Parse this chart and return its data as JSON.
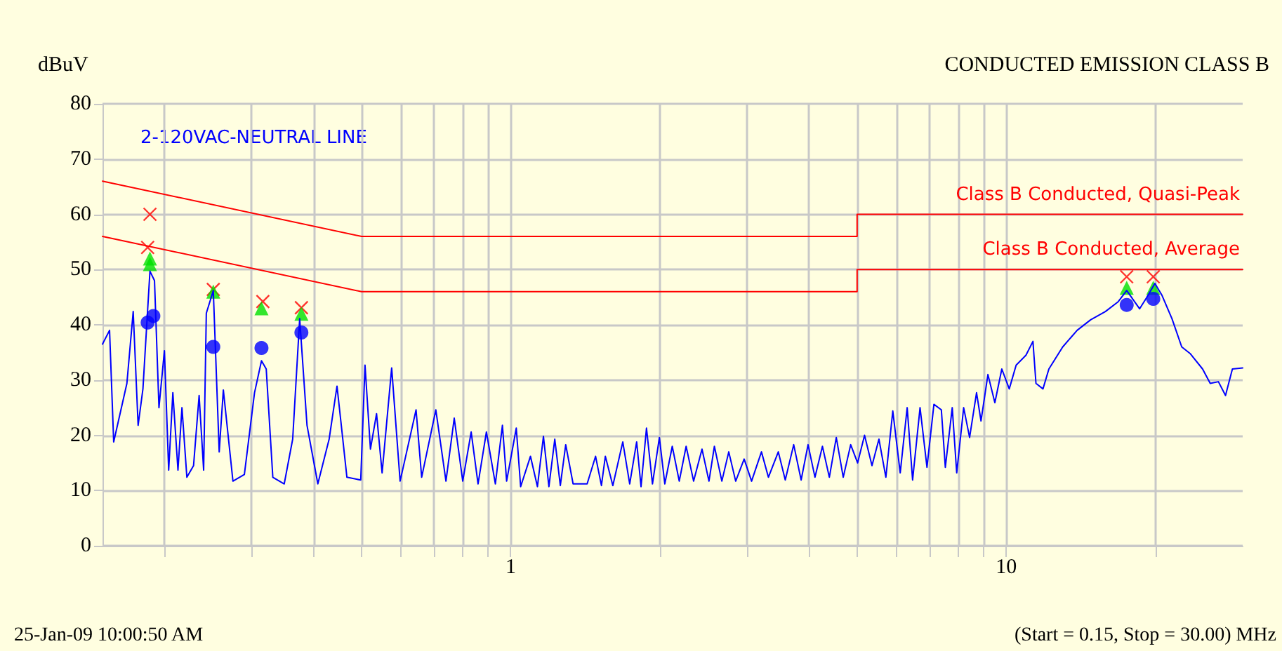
{
  "chart_data": {
    "type": "line",
    "title": "CONDUCTED EMISSION CLASS B",
    "ylabel": "dBuV",
    "annotations": [
      "2-120VAC-NEUTRAL LINE",
      "25-Jan-09 10:00:50 AM",
      "(Start = 0.15, Stop = 30.00) MHz"
    ],
    "log": "x",
    "grid": true,
    "legend": false,
    "line_style": "solid",
    "xlim": [
      0.15,
      30
    ],
    "ylim": [
      0,
      80
    ],
    "xticks": [
      {
        "value": 0.2,
        "label": null
      },
      {
        "value": 0.3,
        "label": null
      },
      {
        "value": 0.4,
        "label": null
      },
      {
        "value": 0.5,
        "label": null
      },
      {
        "value": 0.6,
        "label": null
      },
      {
        "value": 0.7,
        "label": null
      },
      {
        "value": 0.8,
        "label": null
      },
      {
        "value": 0.9,
        "label": null
      },
      1,
      {
        "value": 2,
        "label": null
      },
      {
        "value": 3,
        "label": null
      },
      {
        "value": 4,
        "label": null
      },
      {
        "value": 5,
        "label": null
      },
      {
        "value": 6,
        "label": null
      },
      {
        "value": 7,
        "label": null
      },
      {
        "value": 8,
        "label": null
      },
      {
        "value": 9,
        "label": null
      },
      10,
      {
        "value": 20,
        "label": null
      }
    ],
    "yticks": [
      0,
      10,
      20,
      30,
      40,
      50,
      60,
      70,
      80
    ],
    "series": [
      {
        "color": "#0000ff",
        "marker": "none",
        "x": [
          0.15,
          0.155,
          0.158,
          0.168,
          0.173,
          0.177,
          0.181,
          0.187,
          0.191,
          0.195,
          0.2,
          0.204,
          0.208,
          0.213,
          0.217,
          0.222,
          0.229,
          0.235,
          0.24,
          0.243,
          0.251,
          0.258,
          0.263,
          0.275,
          0.29,
          0.304,
          0.314,
          0.321,
          0.331,
          0.349,
          0.363,
          0.375,
          0.388,
          0.408,
          0.43,
          0.446,
          0.454,
          0.467,
          0.498,
          0.508,
          0.521,
          0.536,
          0.55,
          0.575,
          0.598,
          0.644,
          0.661,
          0.706,
          0.74,
          0.769,
          0.8,
          0.832,
          0.859,
          0.893,
          0.931,
          0.962,
          0.981,
          1.026,
          1.047,
          1.096,
          1.132,
          1.164,
          1.194,
          1.227,
          1.259,
          1.291,
          1.336,
          1.426,
          1.483,
          1.524,
          1.552,
          1.607,
          1.683,
          1.738,
          1.795,
          1.832,
          1.879,
          1.932,
          1.995,
          2.046,
          2.118,
          2.188,
          2.259,
          2.339,
          2.432,
          2.512,
          2.576,
          2.667,
          2.754,
          2.844,
          2.958,
          3.062,
          3.206,
          3.311,
          3.467,
          3.581,
          3.724,
          3.855,
          3.981,
          4.111,
          4.256,
          4.395,
          4.539,
          4.688,
          4.853,
          5.012,
          5.176,
          5.358,
          5.534,
          5.715,
          5.902,
          6.109,
          6.31,
          6.471,
          6.699,
          6.918,
          7.145,
          7.396,
          7.534,
          7.78,
          7.943,
          8.204,
          8.433,
          8.71,
          8.892,
          9.183,
          9.484,
          9.795,
          10.14,
          10.47,
          10.96,
          11.32,
          11.48,
          11.86,
          12.19,
          13.0,
          13.9,
          14.8,
          15.85,
          16.83,
          17.5,
          18.58,
          19.19,
          19.95,
          20.6,
          21.6,
          22.6,
          23.5,
          24.9,
          25.8,
          26.8,
          27.7,
          28.6,
          30
        ],
        "values": [
          36.5,
          39,
          18.8,
          29.4,
          42.4,
          21.8,
          28.4,
          49.7,
          48,
          25,
          35.3,
          13.7,
          27.7,
          13.7,
          25,
          12.4,
          14.5,
          27.2,
          13.7,
          42.1,
          46.2,
          17,
          28.2,
          11.7,
          12.9,
          27.7,
          33.5,
          32,
          12.4,
          11.2,
          19.3,
          41.1,
          21.8,
          11.2,
          19.3,
          28.9,
          22.6,
          12.4,
          11.9,
          32.7,
          17.5,
          23.9,
          13.2,
          32.2,
          11.7,
          24.6,
          12.4,
          24.6,
          11.7,
          23.1,
          11.7,
          20.6,
          11.2,
          20.6,
          11.2,
          21.8,
          11.7,
          21.3,
          10.7,
          16.2,
          10.7,
          19.8,
          10.7,
          19.3,
          10.9,
          18.3,
          11.2,
          11.2,
          16.2,
          10.9,
          16.2,
          10.9,
          18.8,
          11.2,
          18.8,
          10.7,
          21.3,
          11.2,
          19.6,
          11.2,
          18,
          11.7,
          18,
          11.7,
          17.5,
          11.7,
          18,
          11.7,
          17,
          11.7,
          15.7,
          11.7,
          17,
          12.4,
          17,
          11.9,
          18.3,
          11.9,
          18.3,
          12.4,
          18,
          12.4,
          19.6,
          12.4,
          18.3,
          15,
          20,
          14.5,
          19.3,
          12.4,
          24.4,
          13.2,
          25,
          11.9,
          25,
          14.2,
          25.6,
          24.6,
          14.2,
          25,
          13.2,
          25,
          19.6,
          27.7,
          22.6,
          31,
          25.9,
          32,
          28.4,
          32.7,
          34.5,
          37,
          29.4,
          28.4,
          32,
          36,
          39,
          40.9,
          42.4,
          44.2,
          46.2,
          42.9,
          44.9,
          47.5,
          45.4,
          41.1,
          36,
          34.8,
          32,
          29.4,
          29.7,
          27.2,
          32,
          32.2
        ]
      },
      {
        "name": "Class B Conducted, Quasi-Peak",
        "color": "#ff0000",
        "marker": "none",
        "x": [
          0.15,
          0.5,
          5,
          5,
          30
        ],
        "values": [
          66,
          56,
          56,
          60,
          60
        ]
      },
      {
        "name": "Class B Conducted, Average",
        "color": "#ff0000",
        "marker": "none",
        "x": [
          0.15,
          0.5,
          5,
          5,
          30
        ],
        "values": [
          56,
          46,
          46,
          50,
          50
        ]
      },
      {
        "type": "scatter",
        "color": "#ff0000",
        "marker": "cross",
        "x": [
          0.187,
          0.185,
          0.251,
          0.316,
          0.378,
          17.5,
          19.8
        ],
        "values": [
          60,
          54,
          46.4,
          44.2,
          43.1,
          48.7,
          48.7
        ]
      },
      {
        "type": "scatter",
        "color": "#00e000",
        "marker": "triangle",
        "x": [
          0.187,
          0.187,
          0.251,
          0.314,
          0.378,
          17.5,
          19.8
        ],
        "values": [
          52,
          51,
          46,
          43,
          42,
          46.7,
          46.7
        ]
      },
      {
        "type": "scatter",
        "color": "#0000ff",
        "marker": "circle",
        "x": [
          0.185,
          0.19,
          0.251,
          0.314,
          0.378,
          17.5,
          19.8
        ],
        "values": [
          40.4,
          41.6,
          36,
          35.8,
          38.6,
          43.6,
          44.7
        ]
      }
    ]
  }
}
